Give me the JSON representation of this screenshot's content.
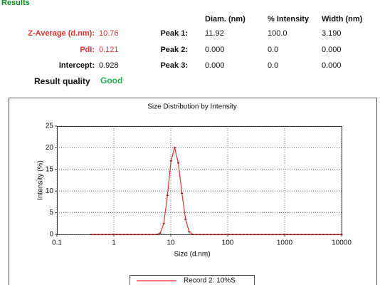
{
  "results": {
    "title": "Results",
    "summary": [
      {
        "label": "Z-Average (d.nm):",
        "value": "10.76"
      },
      {
        "label": "PdI:",
        "value": "0.121"
      },
      {
        "label": "Intercept:",
        "value": "0.928"
      }
    ],
    "quality_label": "Result quality",
    "quality": "Good",
    "peaks": {
      "headers": [
        "Diam. (nm)",
        "% Intensity",
        "Width (nm)"
      ],
      "rows": [
        {
          "label": "Peak 1:",
          "values": [
            "11.92",
            "100.0",
            "3.190"
          ]
        },
        {
          "label": "Peak 2:",
          "values": [
            "0.000",
            "0.0",
            "0.000"
          ]
        },
        {
          "label": "Peak 3:",
          "values": [
            "0.000",
            "0.0",
            "0.000"
          ]
        }
      ]
    }
  },
  "chart_data": {
    "type": "line",
    "title": "Size Distribution by Intensity",
    "x_label": "Size (d.nm)",
    "y_label": "Intensity (%)",
    "x_scale": "log",
    "grid": true,
    "xlim": [
      0.1,
      10000
    ],
    "ylim": [
      0,
      25
    ],
    "xticks": [
      0.1,
      1,
      10,
      100,
      1000,
      10000
    ],
    "yticks": [
      0,
      5,
      10,
      15,
      20,
      25
    ],
    "x": [
      0.4,
      0.4632,
      0.5365,
      0.6213,
      0.7195,
      0.8332,
      0.9649,
      1.117,
      1.294,
      1.499,
      1.736,
      2.01,
      2.328,
      2.696,
      3.122,
      3.615,
      4.187,
      4.849,
      5.615,
      6.503,
      7.531,
      8.721,
      10.1,
      11.7,
      13.54,
      15.69,
      18.17,
      21.04,
      24.36,
      28.21,
      32.67,
      37.84,
      43.82,
      50.75,
      58.77,
      68.06,
      78.82,
      91.28,
      105.7,
      122.4,
      141.8,
      164.2,
      190.1,
      220.2,
      255,
      295.3,
      342,
      396.1,
      458.7,
      531.2,
      615.1,
      712.4,
      825,
      955.4,
      1106,
      1281,
      1484,
      1718,
      1990,
      2305,
      2669,
      3091,
      3580,
      4145,
      4801,
      5560,
      6439,
      7456,
      8635,
      10000
    ],
    "series": [
      {
        "name": "Record 2: 10%S",
        "color": "#e8322f",
        "values": [
          0,
          0,
          0,
          0,
          0,
          0,
          0,
          0,
          0,
          0,
          0,
          0,
          0,
          0,
          0,
          0,
          0,
          0,
          0,
          0.3,
          2.5,
          9,
          17,
          20,
          16.5,
          9.5,
          3.5,
          0.6,
          0,
          0,
          0,
          0,
          0,
          0,
          0,
          0,
          0,
          0,
          0,
          0,
          0,
          0,
          0,
          0,
          0,
          0,
          0,
          0,
          0,
          0,
          0,
          0,
          0,
          0,
          0,
          0,
          0,
          0,
          0,
          0,
          0,
          0,
          0,
          0,
          0,
          0,
          0,
          0,
          0,
          0
        ]
      }
    ]
  }
}
